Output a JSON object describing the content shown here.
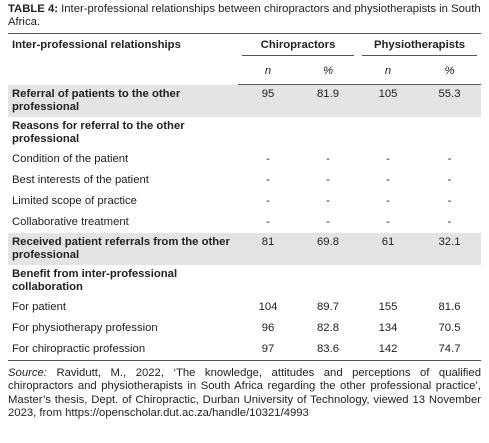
{
  "caption": {
    "label": "TABLE 4:",
    "text": "Inter-professional relationships between chiropractors and physiotherapists in South Africa."
  },
  "table": {
    "header": {
      "label": "Inter-professional relationships",
      "groups": [
        {
          "name": "Chiropractors",
          "subheaders": [
            "n",
            "%"
          ]
        },
        {
          "name": "Physiotherapists",
          "subheaders": [
            "n",
            "%"
          ]
        }
      ]
    },
    "rows": [
      {
        "label": "Referral of patients to the other professional",
        "values": [
          95,
          81.9,
          105,
          55.3
        ],
        "bold": true,
        "shaded": true
      },
      {
        "label": "Reasons for referral to the other professional",
        "bold": true
      },
      {
        "label": "Condition of the patient",
        "values": [
          "-",
          "-",
          "-",
          "-"
        ]
      },
      {
        "label": "Best interests of the patient",
        "values": [
          "-",
          "-",
          "-",
          "-"
        ]
      },
      {
        "label": "Limited scope of practice",
        "values": [
          "-",
          "-",
          "-",
          "-"
        ]
      },
      {
        "label": "Collaborative treatment",
        "values": [
          "-",
          "-",
          "-",
          "-"
        ]
      },
      {
        "label": "Received patient referrals from the other professional",
        "values": [
          81,
          69.8,
          61,
          32.1
        ],
        "bold": true,
        "shaded": true
      },
      {
        "label": "Benefit from inter-professional collaboration",
        "bold": true
      },
      {
        "label": "For patient",
        "values": [
          104,
          89.7,
          155,
          81.6
        ]
      },
      {
        "label": "For physiotherapy profession",
        "values": [
          96,
          82.8,
          134,
          70.5
        ]
      },
      {
        "label": "For chiropractic profession",
        "values": [
          97,
          83.6,
          142,
          74.7
        ]
      }
    ]
  },
  "source": {
    "label": "Source:",
    "text": "Ravidutt, M., 2022, ‘The knowledge, attitudes and perceptions of qualified chiropractors and physiotherapists in South Africa regarding the other professional practice’, Master’s thesis, Dept. of Chiropractic, Durban University of Technology, viewed 13 November 2023, from https://openscholar.dut.ac.za/handle/10321/4993"
  }
}
